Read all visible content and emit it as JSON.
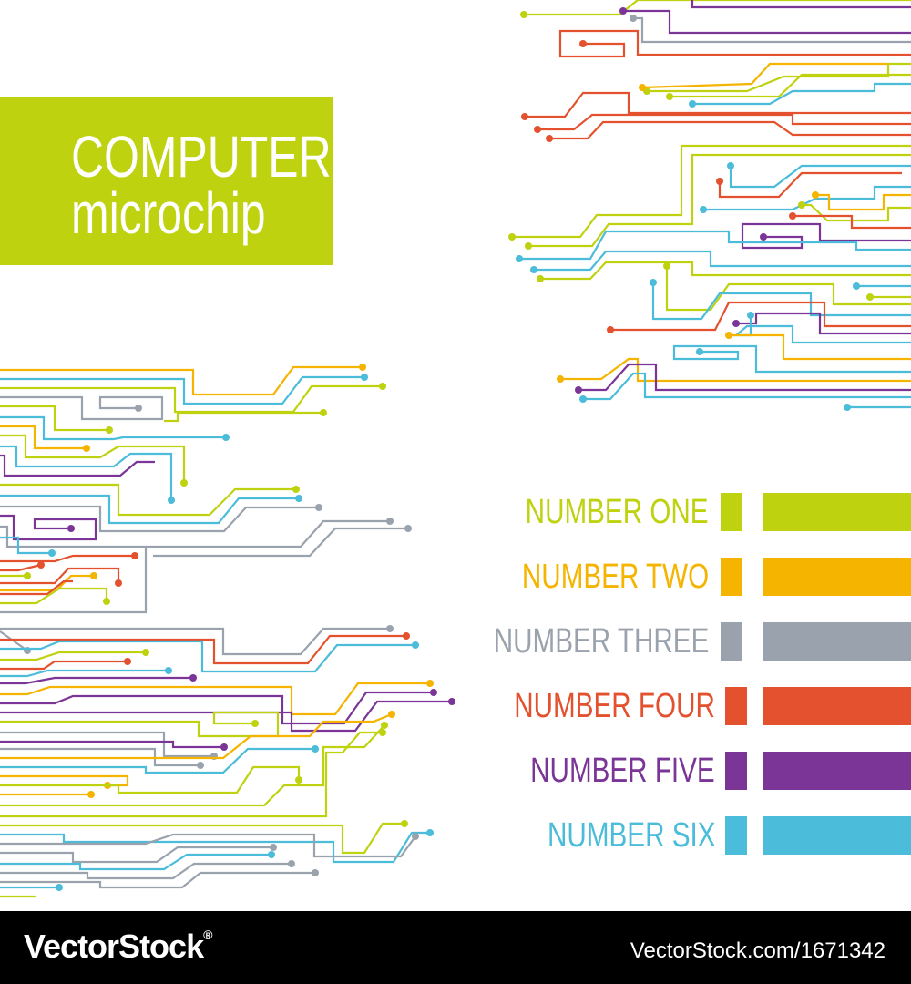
{
  "title": {
    "line1": "COMPUTER",
    "line2": "microchip",
    "box_color": "#bed20f"
  },
  "legend": [
    {
      "label": "NUMBER ONE",
      "color": "#bed20f"
    },
    {
      "label": "NUMBER TWO",
      "color": "#f4b400"
    },
    {
      "label": "NUMBER THREE",
      "color": "#9aa3ad"
    },
    {
      "label": "NUMBER FOUR",
      "color": "#e4512e"
    },
    {
      "label": "NUMBER FIVE",
      "color": "#7a3596"
    },
    {
      "label": "NUMBER SIX",
      "color": "#4bbcd9"
    }
  ],
  "footer": {
    "brand": "VectorStock",
    "brand_mark": "®",
    "url": "VectorStock.com/1671342"
  }
}
